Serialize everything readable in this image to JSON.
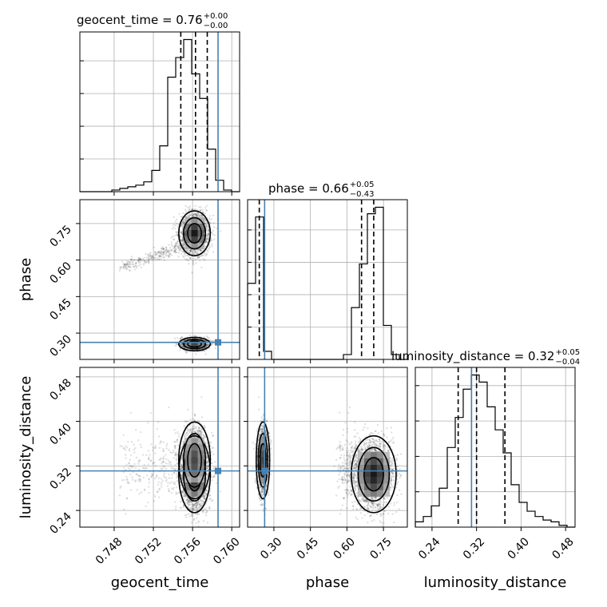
{
  "chart_data": {
    "type": "corner",
    "parameters": [
      "geocent_time",
      "phase",
      "luminosity_distance"
    ],
    "titles": [
      {
        "param": "geocent_time",
        "text": "geocent_time = 0.76",
        "plus": "+0.00",
        "minus": "−0.00"
      },
      {
        "param": "phase",
        "text": "phase = 0.66",
        "plus": "+0.05",
        "minus": "−0.43"
      },
      {
        "param": "luminosity_distance",
        "text": "luminosity_distance = 0.32",
        "plus": "+0.05",
        "minus": "−0.04"
      }
    ],
    "ranges": {
      "geocent_time": [
        0.7445,
        0.7608
      ],
      "phase": [
        0.192,
        0.848
      ],
      "luminosity_distance": [
        0.21,
        0.497
      ]
    },
    "ticks": {
      "geocent_time": [
        "0.748",
        "0.752",
        "0.756",
        "0.760"
      ],
      "phase": [
        "0.30",
        "0.45",
        "0.60",
        "0.75"
      ],
      "luminosity_distance": [
        "0.24",
        "0.32",
        "0.40",
        "0.48"
      ]
    },
    "truths": {
      "geocent_time": 0.7586,
      "phase": 0.262,
      "luminosity_distance": 0.311
    },
    "quantiles": {
      "geocent_time": [
        0.7548,
        0.7563,
        0.7575
      ],
      "phase": [
        0.24,
        0.66,
        0.71
      ],
      "luminosity_distance": [
        0.287,
        0.32,
        0.371
      ]
    },
    "histograms": {
      "geocent_time": {
        "edges_start": 0.7445,
        "bin_width": 0.000815,
        "counts": [
          0,
          0,
          0,
          0,
          1,
          2,
          3,
          4,
          6,
          13,
          28,
          70,
          82,
          93,
          72,
          57,
          26,
          7,
          1,
          0
        ]
      },
      "phase": {
        "edges_start": 0.192,
        "bin_width": 0.0328,
        "counts": [
          47,
          88,
          5,
          0,
          0,
          0,
          0,
          0,
          0,
          0,
          0,
          0,
          3,
          32,
          59,
          90,
          94,
          21,
          3,
          0
        ]
      },
      "luminosity_distance": {
        "edges_start": 0.21,
        "bin_width": 0.01435,
        "counts": [
          3,
          6,
          12,
          22,
          45,
          62,
          78,
          86,
          82,
          68,
          55,
          42,
          24,
          14,
          9,
          6,
          4,
          3,
          1,
          0
        ]
      }
    },
    "modes": [
      {
        "geocent_time": 0.7562,
        "phase": 0.71,
        "luminosity_distance": 0.305,
        "sg": 0.0007,
        "sp": 0.04,
        "sd": 0.03,
        "w": 0.6
      },
      {
        "geocent_time": 0.7562,
        "phase": 0.255,
        "luminosity_distance": 0.33,
        "sg": 0.0007,
        "sp": 0.012,
        "sd": 0.03,
        "w": 0.4
      }
    ],
    "tail": {
      "from_geocent": 0.749,
      "to_geocent": 0.755,
      "phase_from": 0.57,
      "phase_to": 0.66
    }
  }
}
